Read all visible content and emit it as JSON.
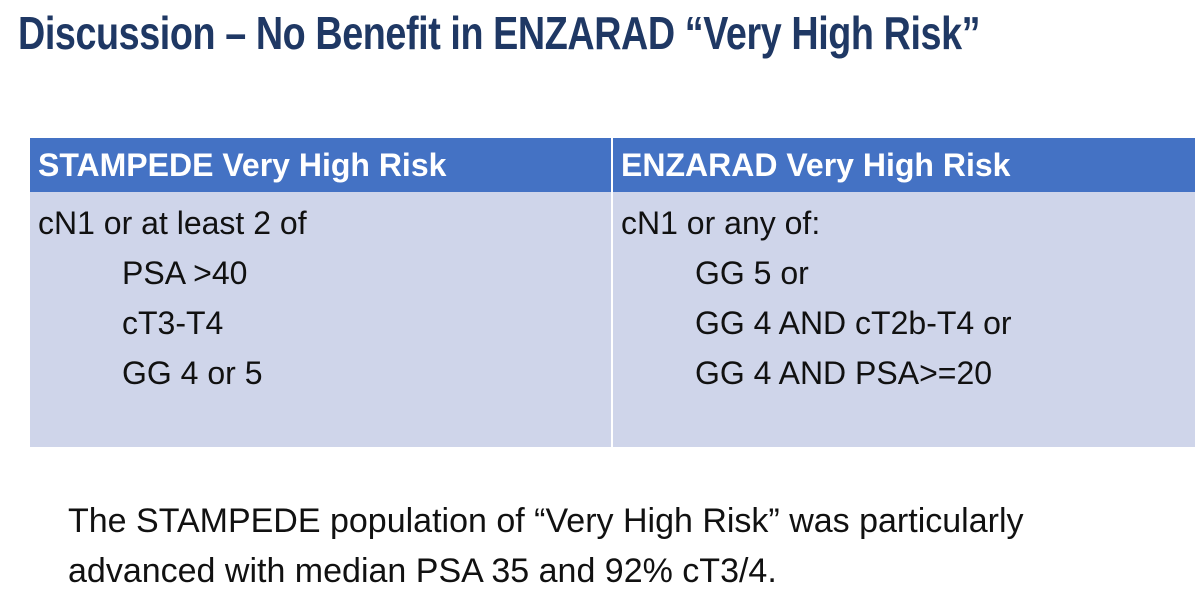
{
  "title": "Discussion – No Benefit in ENZARAD “Very High Risk”",
  "table": {
    "columns": [
      {
        "header": "STAMPEDE Very High Risk",
        "lead": "cN1 or at least 2 of",
        "items": [
          "PSA >40",
          "cT3-T4",
          "GG 4 or 5"
        ]
      },
      {
        "header": "ENZARAD Very High Risk",
        "lead": "cN1 or any of:",
        "items": [
          "GG 5 or",
          "GG 4 AND cT2b-T4 or",
          "GG 4 AND PSA>=20"
        ]
      }
    ]
  },
  "note": {
    "lines": [
      "The STAMPEDE population of “Very High Risk” was particularly",
      "advanced with median PSA 35 and 92% cT3/4."
    ]
  }
}
